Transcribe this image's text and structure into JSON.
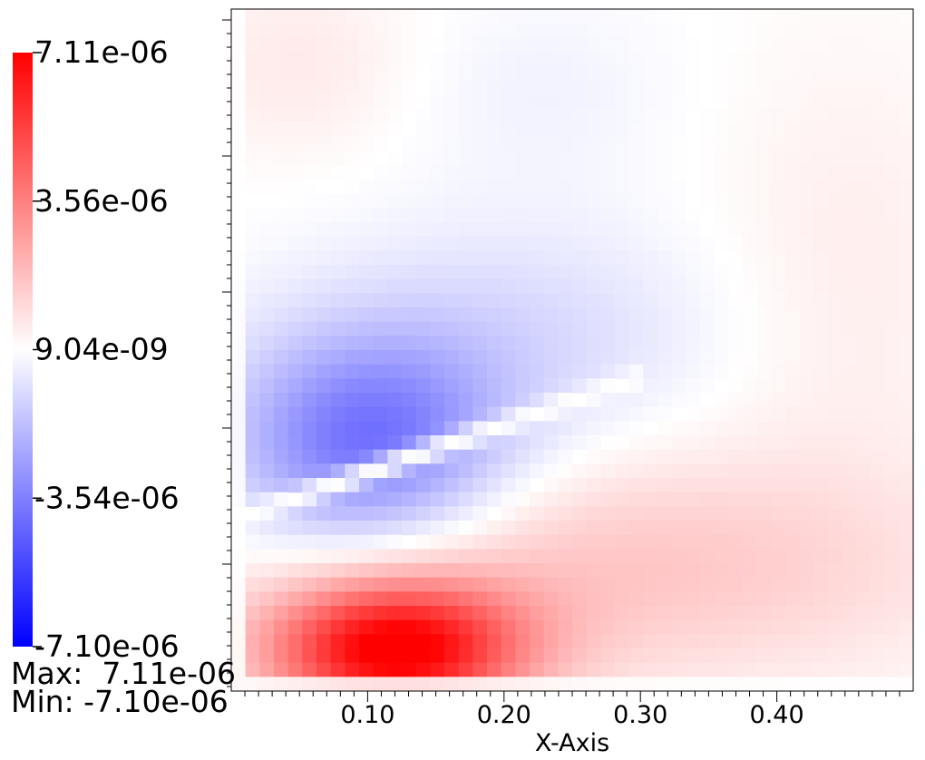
{
  "chart_data": {
    "type": "heatmap",
    "title": "",
    "xlabel": "X-Axis",
    "ylabel": "",
    "xlim": [
      0.0,
      0.5
    ],
    "x_ticks": [
      0.1,
      0.2,
      0.3,
      0.4
    ],
    "x_tick_labels": [
      "0.10",
      "0.20",
      "0.30",
      "0.40"
    ],
    "colorbar": {
      "min": -7.1e-06,
      "max": 7.11e-06,
      "colors": [
        "#0000ff",
        "#ffffff",
        "#ff0000"
      ],
      "tick_labels": [
        "7.11e-06",
        "3.56e-06",
        "9.04e-09",
        "-3.54e-06",
        "-7.10e-06"
      ]
    },
    "range_text": {
      "max": "Max:  7.11e-06",
      "min": "Min: -7.10e-06"
    },
    "field_features": [
      {
        "sign": "negative",
        "peak": -4e-06,
        "x_center": 0.1,
        "description": "blue lobe"
      },
      {
        "sign": "positive",
        "peak": 7.11e-06,
        "x_center": 0.12,
        "description": "red lobe"
      }
    ]
  }
}
